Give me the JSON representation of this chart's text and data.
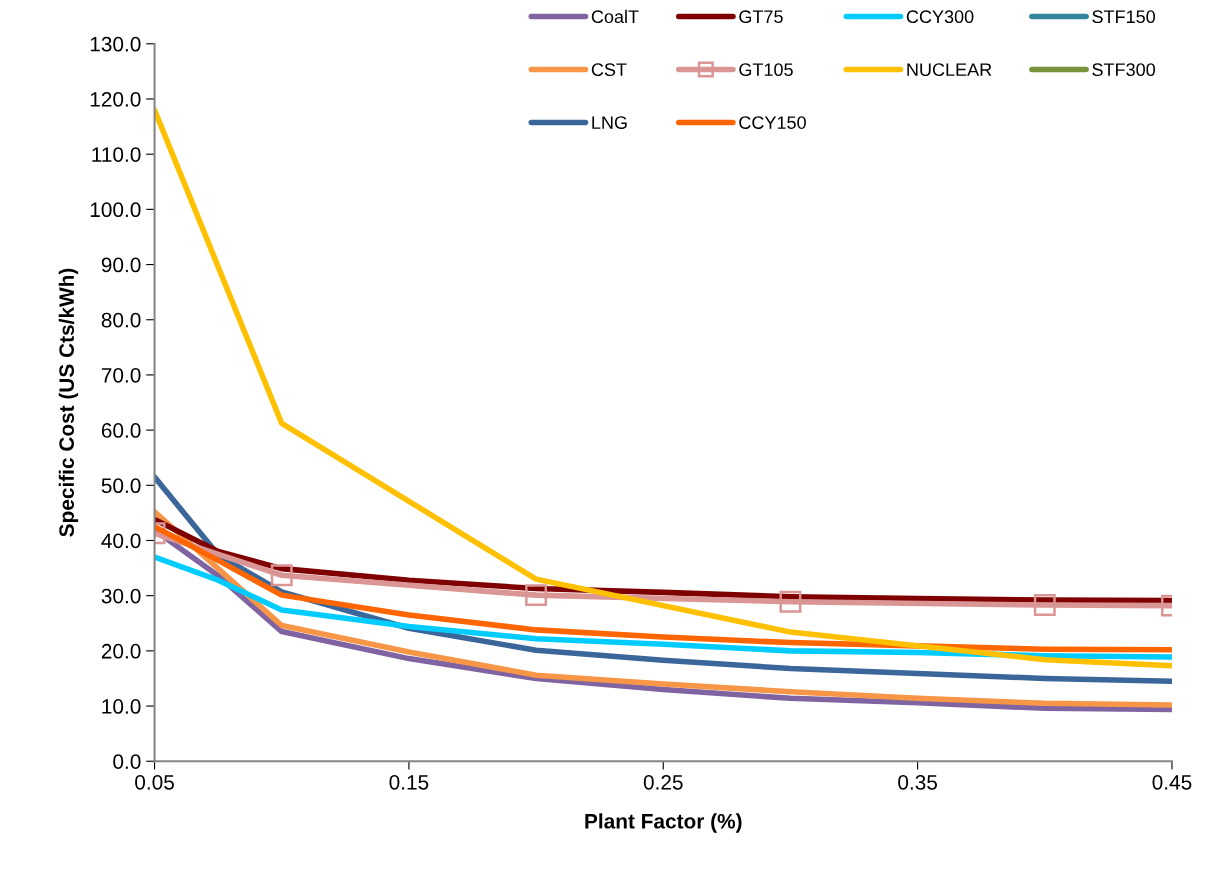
{
  "chart_data": {
    "type": "line",
    "xlabel": "Plant Factor (%)",
    "ylabel": "Specific Cost (US Cts/kWh)",
    "x": [
      0.05,
      0.075,
      0.1,
      0.15,
      0.2,
      0.25,
      0.3,
      0.35,
      0.4,
      0.45
    ],
    "series": [
      {
        "name": "CoalT",
        "color": "#8064a2",
        "values": [
          41.9,
          33.6,
          23.5,
          18.6,
          15.0,
          13.0,
          11.4,
          10.6,
          9.6,
          9.4
        ]
      },
      {
        "name": "CST",
        "color": "#f79646",
        "values": [
          45.2,
          34.9,
          24.6,
          19.8,
          15.6,
          14.0,
          12.6,
          11.4,
          10.5,
          10.2
        ]
      },
      {
        "name": "LNG",
        "color": "#3a6699",
        "values": [
          51.5,
          37.4,
          30.7,
          24.1,
          20.1,
          18.3,
          16.8,
          15.9,
          15.0,
          14.5
        ]
      },
      {
        "name": "GT75",
        "color": "#7f0000",
        "values": [
          43.8,
          38.0,
          34.9,
          32.8,
          31.3,
          30.6,
          29.8,
          29.5,
          29.2,
          29.1
        ]
      },
      {
        "name": "GT105",
        "color": "#d99694",
        "marker": "square",
        "x": [
          0.05,
          0.1,
          0.2,
          0.3,
          0.4,
          0.45
        ],
        "values": [
          41.3,
          33.7,
          30.1,
          28.9,
          28.3,
          28.2
        ]
      },
      {
        "name": "CCY150",
        "color": "#ff6600",
        "values": [
          42.5,
          36.4,
          30.1,
          26.5,
          23.8,
          22.5,
          21.5,
          20.9,
          20.3,
          20.2
        ]
      },
      {
        "name": "CCY300",
        "color": "#00ccff",
        "values": [
          37.0,
          32.8,
          27.4,
          24.4,
          22.2,
          21.2,
          20.0,
          19.7,
          19.1,
          18.9
        ]
      },
      {
        "name": "NUCLEAR",
        "color": "#ffc000",
        "x": [
          0.05,
          0.1,
          0.2,
          0.3,
          0.4,
          0.45
        ],
        "values": [
          118.0,
          61.2,
          33.0,
          23.4,
          18.4,
          17.3
        ]
      },
      {
        "name": "STF150",
        "color": "#31859c",
        "values": [
          null,
          null,
          null,
          null,
          null,
          null,
          null,
          null,
          null,
          null
        ]
      },
      {
        "name": "STF300",
        "color": "#77933c",
        "values": [
          null,
          null,
          null,
          null,
          null,
          null,
          null,
          null,
          null,
          null
        ]
      }
    ],
    "xlim": [
      0.05,
      0.45
    ],
    "xticks": [
      0.05,
      0.15,
      0.25,
      0.35,
      0.45
    ],
    "ylim": [
      0,
      130
    ],
    "yticks": [
      {
        "value": 0,
        "label": "0.0"
      },
      {
        "value": 10,
        "label": "10.0"
      },
      {
        "value": 20,
        "label": "20.0"
      },
      {
        "value": 30,
        "label": "30.0"
      },
      {
        "value": 40,
        "label": "40.0"
      },
      {
        "value": 50,
        "label": "50.0"
      },
      {
        "value": 60,
        "label": "60.0"
      },
      {
        "value": 70,
        "label": "70.0"
      },
      {
        "value": 80,
        "label": "80.0"
      },
      {
        "value": 90,
        "label": "90.0"
      },
      {
        "value": 100,
        "label": "100.0"
      },
      {
        "value": 110,
        "label": "110.0"
      },
      {
        "value": 120,
        "label": "120.0"
      },
      {
        "value": 130,
        "label": "130.0"
      }
    ],
    "grid": false,
    "legend": "top right",
    "marker": "none",
    "line_style": "solid"
  }
}
